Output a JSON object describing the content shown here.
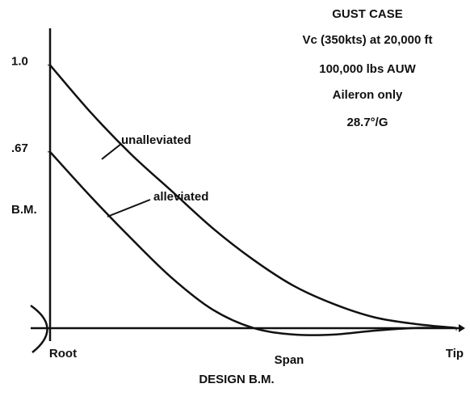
{
  "chart_data": {
    "type": "line",
    "title": "DESIGN B.M.",
    "annotations": [
      "GUST CASE",
      "Vc (350kts) at 20,000 ft",
      "100,000 lbs AUW",
      "Aileron only",
      "28.7°/G"
    ],
    "ylabel": "B.M.",
    "xlabel": "Span",
    "x": [
      0,
      0.1,
      0.2,
      0.3,
      0.4,
      0.5,
      0.6,
      0.7,
      0.8,
      0.9,
      1.0
    ],
    "series": [
      {
        "name": "unalleviated",
        "color": "#111111",
        "values": [
          1.0,
          0.82,
          0.66,
          0.52,
          0.38,
          0.26,
          0.16,
          0.09,
          0.04,
          0.015,
          0
        ]
      },
      {
        "name": "alleviated",
        "color": "#111111",
        "values": [
          0.67,
          0.5,
          0.34,
          0.19,
          0.07,
          0,
          -0.025,
          -0.025,
          -0.01,
          0,
          0
        ]
      }
    ],
    "xlim": [
      0,
      1
    ],
    "xticks": [
      {
        "value": 0,
        "label": "Root"
      },
      {
        "value": 1,
        "label": "Tip"
      }
    ],
    "ylim": [
      -0.05,
      1.14
    ],
    "yticks": [
      {
        "value": 1,
        "label": "1.0"
      },
      {
        "value": 0.67,
        "label": ".67"
      }
    ]
  }
}
